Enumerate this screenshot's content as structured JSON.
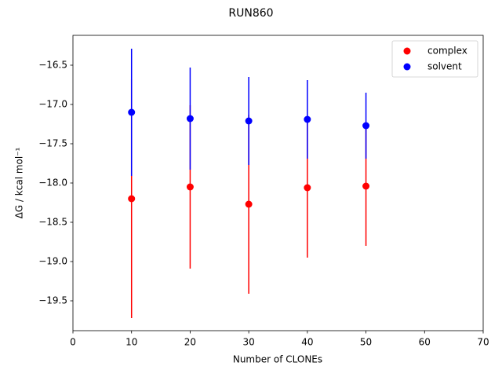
{
  "chart_data": {
    "type": "errorbar-scatter",
    "title": "RUN860",
    "x_label": "Number of CLONEs",
    "y_label": "ΔG / kcal mol⁻¹",
    "x": [
      10,
      20,
      30,
      40,
      50
    ],
    "series": [
      {
        "name": "complex",
        "color": "#ff0000",
        "values": [
          -18.2,
          -18.05,
          -18.27,
          -18.06,
          -18.04
        ],
        "errors": [
          1.52,
          1.04,
          1.14,
          0.89,
          0.76
        ]
      },
      {
        "name": "solvent",
        "color": "#0000ff",
        "values": [
          -17.1,
          -17.18,
          -17.21,
          -17.19,
          -17.27
        ],
        "errors": [
          0.81,
          0.65,
          0.56,
          0.5,
          0.42
        ]
      }
    ],
    "xlim": [
      0,
      70
    ],
    "xticks": [
      0,
      10,
      20,
      30,
      40,
      50,
      60,
      70
    ],
    "ylim": [
      -19.88,
      -16.12
    ],
    "yticks": [
      {
        "value": -16.5,
        "label": "−16.5"
      },
      {
        "value": -17.0,
        "label": "−17.0"
      },
      {
        "value": -17.5,
        "label": "−17.5"
      },
      {
        "value": -18.0,
        "label": "−18.0"
      },
      {
        "value": -18.5,
        "label": "−18.5"
      },
      {
        "value": -19.0,
        "label": "−19.0"
      },
      {
        "value": -19.5,
        "label": "−19.5"
      }
    ],
    "grid": false,
    "legend": "upper right"
  }
}
